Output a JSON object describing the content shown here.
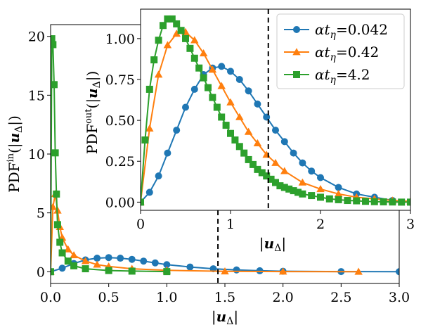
{
  "chart_data": [
    {
      "type": "line",
      "panel": "main",
      "xlabel": "|u_Δ|",
      "ylabel": "PDF^in(|u_Δ|)",
      "xlim": [
        0,
        3.0
      ],
      "ylim": [
        -1.0,
        21.0
      ],
      "xticks": [
        "0.0",
        "0.5",
        "1.0",
        "1.5",
        "2.0",
        "2.5",
        "3.0"
      ],
      "yticks": [
        "0",
        "5",
        "10",
        "15",
        "20"
      ],
      "vline_x": 1.44,
      "grid": false,
      "series": [
        {
          "name": "αt_η=0.042",
          "color": "#1f77b4",
          "marker": "circle",
          "x": [
            0.0,
            0.1,
            0.2,
            0.3,
            0.4,
            0.5,
            0.6,
            0.7,
            0.8,
            0.9,
            1.0,
            1.2,
            1.4,
            1.6,
            1.8,
            2.0,
            2.5,
            3.0
          ],
          "y": [
            0.0,
            0.3,
            0.7,
            1.0,
            1.15,
            1.2,
            1.15,
            1.05,
            0.9,
            0.75,
            0.6,
            0.4,
            0.25,
            0.15,
            0.08,
            0.04,
            0.01,
            0.0
          ]
        },
        {
          "name": "αt_η=0.42",
          "color": "#ff7f0e",
          "marker": "triangle",
          "x": [
            0.0,
            0.02,
            0.04,
            0.06,
            0.08,
            0.1,
            0.15,
            0.2,
            0.3,
            0.4,
            0.5,
            0.7,
            1.0,
            1.5,
            2.0,
            2.65
          ],
          "y": [
            0.0,
            5.5,
            6.6,
            5.2,
            3.8,
            2.9,
            1.9,
            1.4,
            0.9,
            0.6,
            0.45,
            0.25,
            0.12,
            0.03,
            0.01,
            0.0
          ]
        },
        {
          "name": "αt_η=4.2",
          "color": "#2ca02c",
          "marker": "square",
          "x": [
            0.0,
            0.01,
            0.02,
            0.03,
            0.04,
            0.05,
            0.06,
            0.08,
            0.1,
            0.15,
            0.2,
            0.3,
            0.5,
            0.7,
            1.0
          ],
          "y": [
            0.0,
            19.8,
            19.3,
            15.9,
            10.1,
            6.6,
            4.0,
            2.5,
            1.6,
            0.9,
            0.5,
            0.25,
            0.1,
            0.05,
            0.01
          ]
        }
      ]
    },
    {
      "type": "line",
      "panel": "inset",
      "xlabel": "|u_Δ|",
      "ylabel": "PDF^out(|u_Δ|)",
      "xlim": [
        0,
        3
      ],
      "ylim": [
        -0.05,
        1.18
      ],
      "xticks": [
        "0",
        "1",
        "2",
        "3"
      ],
      "yticks": [
        "0.00",
        "0.25",
        "0.50",
        "0.75",
        "1.00"
      ],
      "vline_x": 1.42,
      "grid": false,
      "legend_position": "top-right",
      "series": [
        {
          "name": "αt_η=0.042",
          "color": "#1f77b4",
          "marker": "circle",
          "x": [
            0.0,
            0.1,
            0.2,
            0.3,
            0.4,
            0.5,
            0.6,
            0.7,
            0.8,
            0.9,
            1.0,
            1.1,
            1.2,
            1.3,
            1.4,
            1.5,
            1.6,
            1.7,
            1.8,
            1.9,
            2.0,
            2.2,
            2.4,
            2.6,
            2.8,
            3.0
          ],
          "y": [
            0.0,
            0.06,
            0.16,
            0.3,
            0.44,
            0.58,
            0.69,
            0.78,
            0.82,
            0.83,
            0.8,
            0.75,
            0.68,
            0.6,
            0.52,
            0.44,
            0.37,
            0.3,
            0.24,
            0.19,
            0.15,
            0.09,
            0.05,
            0.03,
            0.01,
            0.0
          ]
        },
        {
          "name": "αt_η=0.42",
          "color": "#ff7f0e",
          "marker": "triangle",
          "x": [
            0.0,
            0.1,
            0.2,
            0.3,
            0.4,
            0.5,
            0.6,
            0.7,
            0.8,
            0.9,
            1.0,
            1.1,
            1.2,
            1.3,
            1.4,
            1.5,
            1.6,
            1.8,
            2.0,
            2.2,
            2.4,
            2.6,
            2.8,
            3.0
          ],
          "y": [
            0.0,
            0.45,
            0.78,
            0.96,
            1.03,
            1.04,
            0.99,
            0.91,
            0.81,
            0.71,
            0.61,
            0.52,
            0.43,
            0.36,
            0.29,
            0.24,
            0.19,
            0.12,
            0.08,
            0.05,
            0.03,
            0.02,
            0.01,
            0.005
          ]
        },
        {
          "name": "αt_η=4.2",
          "color": "#2ca02c",
          "marker": "square",
          "x": [
            0.0,
            0.05,
            0.1,
            0.15,
            0.2,
            0.25,
            0.3,
            0.35,
            0.4,
            0.45,
            0.5,
            0.55,
            0.6,
            0.65,
            0.7,
            0.75,
            0.8,
            0.85,
            0.9,
            0.95,
            1.0,
            1.05,
            1.1,
            1.15,
            1.2,
            1.25,
            1.3,
            1.35,
            1.4,
            1.45,
            1.5,
            1.55,
            1.6,
            1.65,
            1.7,
            1.75,
            1.8,
            1.9,
            2.0,
            2.1,
            2.2,
            2.3,
            2.4,
            2.5,
            2.6,
            2.7,
            2.8,
            2.9,
            3.0
          ],
          "y": [
            0.0,
            0.38,
            0.69,
            0.87,
            0.99,
            1.08,
            1.12,
            1.12,
            1.09,
            1.05,
            1.0,
            0.94,
            0.88,
            0.82,
            0.76,
            0.7,
            0.64,
            0.58,
            0.52,
            0.47,
            0.42,
            0.38,
            0.34,
            0.3,
            0.26,
            0.23,
            0.2,
            0.18,
            0.16,
            0.14,
            0.12,
            0.1,
            0.09,
            0.08,
            0.07,
            0.06,
            0.05,
            0.04,
            0.03,
            0.02,
            0.015,
            0.01,
            0.008,
            0.005,
            0.003,
            0.002,
            0.001,
            0.0,
            0.0
          ]
        }
      ]
    }
  ]
}
